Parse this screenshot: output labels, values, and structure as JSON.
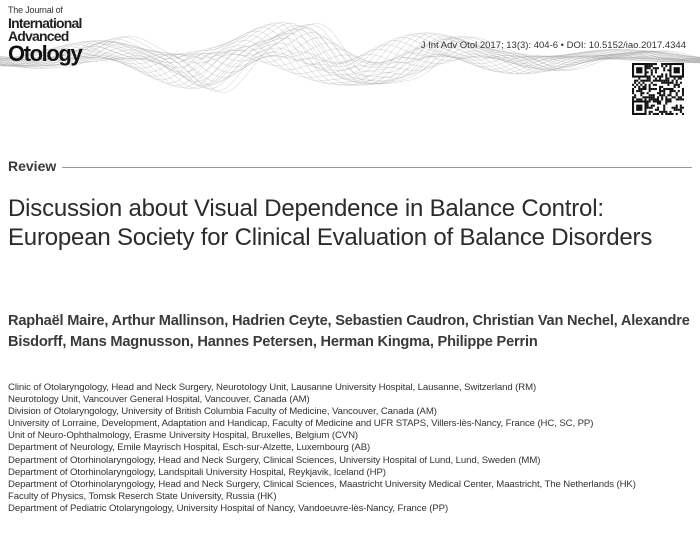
{
  "journal": {
    "name_small": "The Journal of",
    "name_mid1": "International",
    "name_mid2": "Advanced",
    "name_big": "Otology"
  },
  "citation": "J Int Adv Otol 2017; 13(3): 404-6 • DOI: 10.5152/iao.2017.4344",
  "article_type": "Review",
  "title": "Discussion about Visual Dependence in Balance Control: European Society for Clinical Evaluation of Balance Disorders",
  "authors": "Raphaël Maire, Arthur Mallinson, Hadrien Ceyte, Sebastien Caudron, Christian Van Nechel, Alexandre Bisdorff, Mans Magnusson, Hannes Petersen, Herman Kingma, Philippe Perrin",
  "affiliations": [
    "Clinic of Otolaryngology, Head and Neck Surgery, Neurotology Unit, Lausanne University Hospital, Lausanne, Switzerland (RM)",
    "Neurotology Unit, Vancouver General Hospital, Vancouver, Canada (AM)",
    "Division of Otolaryngology, University of British Columbia Faculty of Medicine, Vancouver, Canada (AM)",
    "University of Lorraine, Development, Adaptation and  Handicap, Faculty of Medicine and UFR STAPS, Villers-lès-Nancy, France (HC, SC, PP)",
    "Unit of Neuro-Ophthalmology, Erasme University Hospital, Bruxelles, Belgium (CVN)",
    "Department of Neurology, Emile Mayrisch Hospital, Esch-sur-Alzette, Luxembourg (AB)",
    "Department of Otorhinolaryngology, Head and Neck Surgery, Clinical Sciences, University Hospital of Lund, Lund, Sweden (MM)",
    "Department of Otorhinolaryngology, Landspitali University Hospital, Reykjavik, Iceland (HP)",
    "Department of Otorhinolaryngology, Head and Neck Surgery, Clinical Sciences, Maastricht University Medical Center, Maastricht, The Netherlands (HK)",
    "Faculty of Physics, Tomsk Reserch State University, Russia (HK)",
    "Department of Pediatric Otolaryngology, University Hospital of Nancy, Vandoeuvre-lès-Nancy, France (PP)"
  ],
  "icons": {
    "qr": "qr-code-icon",
    "wave": "sound-wave-graphic"
  }
}
